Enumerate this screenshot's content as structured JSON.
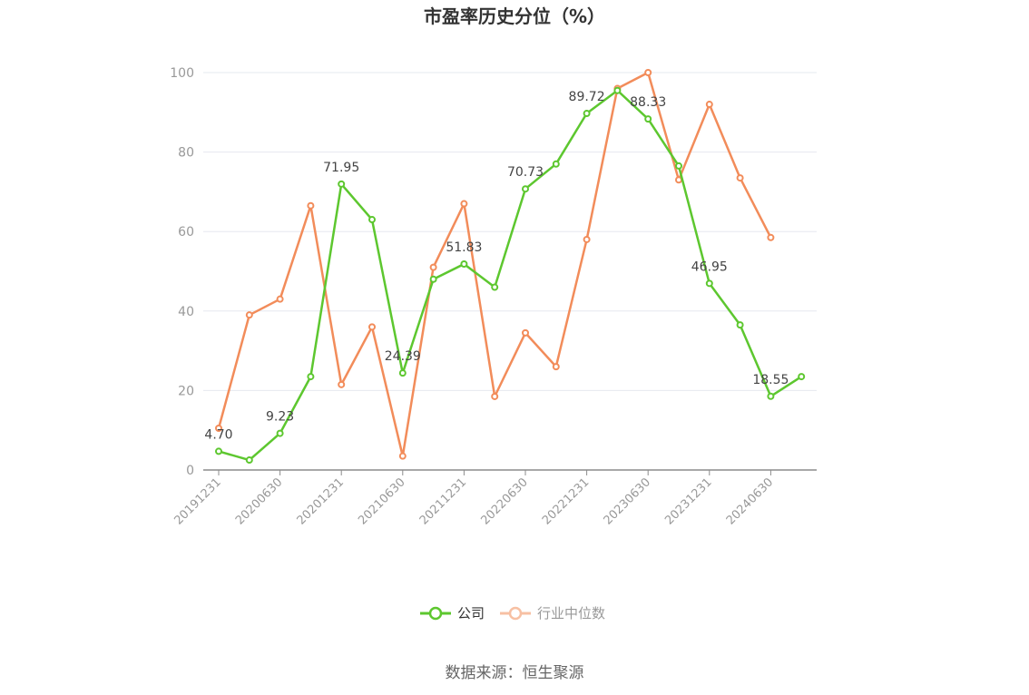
{
  "chart_data": {
    "type": "line",
    "title": "市盈率历史分位（%）",
    "ylim": [
      0,
      100
    ],
    "yticks": [
      0,
      20,
      40,
      60,
      80,
      100
    ],
    "grid": true,
    "legend_position": "bottom",
    "x": [
      "20191231",
      "20200331",
      "20200630",
      "20200930",
      "20201231",
      "20210331",
      "20210630",
      "20210930",
      "20211231",
      "20220331",
      "20220630",
      "20220930",
      "20221231",
      "20230331",
      "20230630",
      "20230930",
      "20231231",
      "20240331",
      "20240630",
      "20240930"
    ],
    "x_tick_labels": [
      "20191231",
      "20200630",
      "20201231",
      "20210630",
      "20211231",
      "20220630",
      "20221231",
      "20230630",
      "20231231",
      "20240630"
    ],
    "series": [
      {
        "name": "公司",
        "color": "#5dc72f",
        "values": [
          4.7,
          2.5,
          9.23,
          23.5,
          71.95,
          63.0,
          24.39,
          48.0,
          51.83,
          46.0,
          70.73,
          77.0,
          89.72,
          95.5,
          88.33,
          76.5,
          46.95,
          36.5,
          18.55,
          23.5
        ],
        "data_labels": [
          "4.70",
          "",
          "9.23",
          "",
          "71.95",
          "",
          "24.39",
          "",
          "51.83",
          "",
          "70.73",
          "",
          "89.72",
          "",
          "88.33",
          "",
          "46.95",
          "",
          "18.55",
          ""
        ]
      },
      {
        "name": "行业中位数",
        "color": "#f28c5a",
        "values": [
          10.5,
          39.0,
          43.0,
          66.5,
          21.5,
          36.0,
          3.5,
          51.0,
          67.0,
          18.5,
          34.5,
          26.0,
          58.0,
          96.0,
          100.0,
          73.0,
          92.0,
          73.5,
          58.5,
          null
        ]
      }
    ],
    "source": "数据来源：恒生聚源"
  }
}
